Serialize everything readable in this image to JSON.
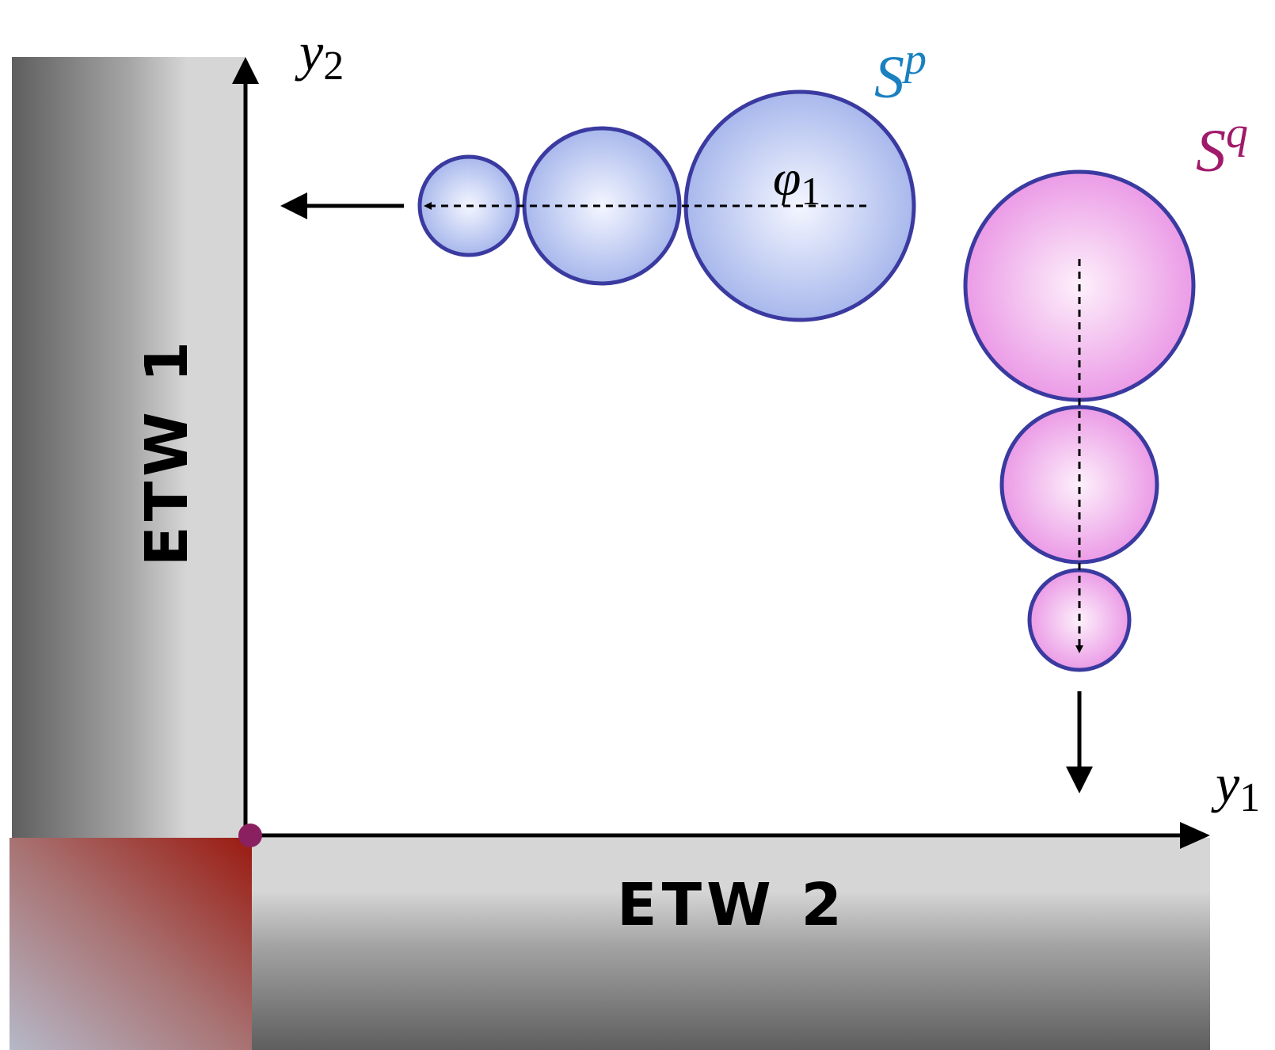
{
  "axes": {
    "vertical": {
      "base": "y",
      "sub": "2"
    },
    "horizontal": {
      "base": "y",
      "sub": "1"
    }
  },
  "walls": {
    "left": "ETW 1",
    "bottom": "ETW 2"
  },
  "strings": {
    "p": {
      "base": "S",
      "sup": "p"
    },
    "q": {
      "base": "S",
      "sup": "q"
    }
  },
  "angle": {
    "base": "φ",
    "sub": "1"
  }
}
